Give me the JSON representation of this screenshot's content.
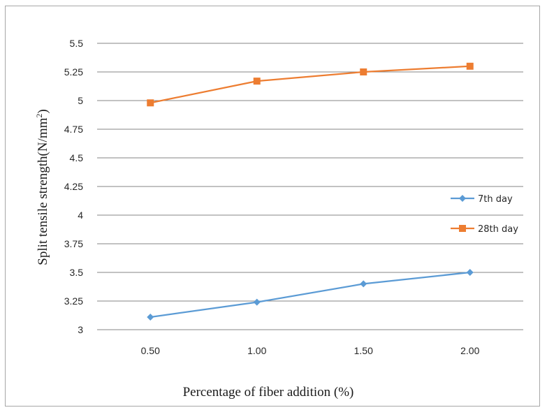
{
  "chart_data": {
    "type": "line",
    "categories": [
      "0.50",
      "1.00",
      "1.50",
      "2.00"
    ],
    "series": [
      {
        "name": "7th day",
        "values": [
          3.11,
          3.24,
          3.4,
          3.5
        ],
        "color": "#5b9bd5",
        "marker": "diamond"
      },
      {
        "name": "28th day",
        "values": [
          4.98,
          5.17,
          5.25,
          5.3
        ],
        "color": "#ed7d31",
        "marker": "square"
      }
    ],
    "y_ticks": [
      "3",
      "3.25",
      "3.5",
      "3.75",
      "4",
      "4.25",
      "4.5",
      "4.75",
      "5",
      "5.25",
      "5.5"
    ],
    "ylim": [
      3,
      5.5
    ],
    "xlabel": "Percentage of fiber addition (%)",
    "ylabel_main": "Split tensile strength(N/mm",
    "ylabel_sup": "2",
    "ylabel_end": ")",
    "grid": true,
    "legend_position": "right",
    "gridline_color": "#868686"
  }
}
